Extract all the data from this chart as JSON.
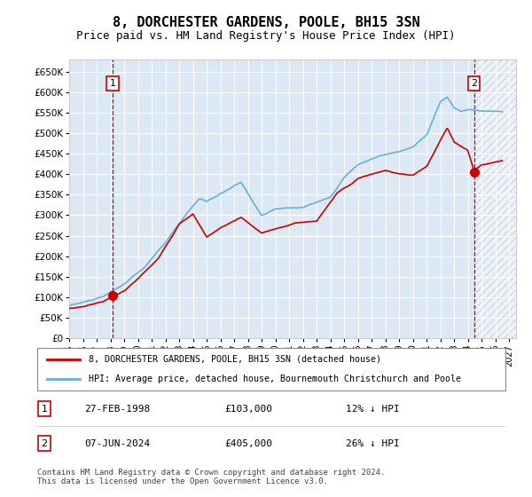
{
  "title": "8, DORCHESTER GARDENS, POOLE, BH15 3SN",
  "subtitle": "Price paid vs. HM Land Registry's House Price Index (HPI)",
  "bg_color": "#dce9f5",
  "hpi_color": "#6baed6",
  "price_color": "#cc0000",
  "marker_color": "#cc0000",
  "vline_color": "#cc0000",
  "transaction1_date_num": 1998.15,
  "transaction1_price": 103000,
  "transaction1_label": "1",
  "transaction2_date_num": 2024.44,
  "transaction2_price": 405000,
  "transaction2_label": "2",
  "transaction1_date_str": "27-FEB-1998",
  "transaction2_date_str": "07-JUN-2024",
  "t1_pct": "12% ↓ HPI",
  "t2_pct": "26% ↓ HPI",
  "legend_property": "8, DORCHESTER GARDENS, POOLE, BH15 3SN (detached house)",
  "legend_hpi": "HPI: Average price, detached house, Bournemouth Christchurch and Poole",
  "footnote": "Contains HM Land Registry data © Crown copyright and database right 2024.\nThis data is licensed under the Open Government Licence v3.0.",
  "ylim": [
    0,
    680000
  ],
  "xlim_start": 1995.0,
  "xlim_end": 2027.5,
  "hatch_start": 2024.44,
  "yticks": [
    0,
    50000,
    100000,
    150000,
    200000,
    250000,
    300000,
    350000,
    400000,
    450000,
    500000,
    550000,
    600000,
    650000
  ],
  "ytick_labels": [
    "£0",
    "£50K",
    "£100K",
    "£150K",
    "£200K",
    "£250K",
    "£300K",
    "£350K",
    "£400K",
    "£450K",
    "£500K",
    "£550K",
    "£600K",
    "£650K"
  ],
  "hpi_segments": [
    [
      1995.0,
      80000
    ],
    [
      1996.0,
      87000
    ],
    [
      1997.5,
      100000
    ],
    [
      1999.0,
      130000
    ],
    [
      2000.5,
      170000
    ],
    [
      2002.0,
      230000
    ],
    [
      2003.5,
      300000
    ],
    [
      2004.5,
      340000
    ],
    [
      2005.0,
      330000
    ],
    [
      2007.5,
      375000
    ],
    [
      2009.0,
      295000
    ],
    [
      2010.0,
      310000
    ],
    [
      2012.0,
      315000
    ],
    [
      2014.0,
      340000
    ],
    [
      2015.0,
      390000
    ],
    [
      2016.0,
      420000
    ],
    [
      2017.0,
      435000
    ],
    [
      2018.0,
      445000
    ],
    [
      2019.0,
      450000
    ],
    [
      2020.0,
      460000
    ],
    [
      2021.0,
      490000
    ],
    [
      2022.0,
      570000
    ],
    [
      2022.5,
      580000
    ],
    [
      2023.0,
      555000
    ],
    [
      2023.5,
      545000
    ],
    [
      2024.0,
      550000
    ],
    [
      2024.5,
      548000
    ],
    [
      2025.0,
      547000
    ],
    [
      2026.5,
      545000
    ]
  ],
  "prop_segments": [
    [
      1995.0,
      72000
    ],
    [
      1996.0,
      77000
    ],
    [
      1997.5,
      90000
    ],
    [
      1998.0,
      100000
    ],
    [
      1998.2,
      103000
    ],
    [
      1999.0,
      115000
    ],
    [
      2000.0,
      145000
    ],
    [
      2001.5,
      195000
    ],
    [
      2002.5,
      250000
    ],
    [
      2003.0,
      280000
    ],
    [
      2004.0,
      305000
    ],
    [
      2005.0,
      248000
    ],
    [
      2006.0,
      270000
    ],
    [
      2007.5,
      295000
    ],
    [
      2009.0,
      255000
    ],
    [
      2010.0,
      265000
    ],
    [
      2011.5,
      280000
    ],
    [
      2013.0,
      285000
    ],
    [
      2014.5,
      355000
    ],
    [
      2015.5,
      375000
    ],
    [
      2016.0,
      390000
    ],
    [
      2017.0,
      400000
    ],
    [
      2017.5,
      405000
    ],
    [
      2018.0,
      410000
    ],
    [
      2019.0,
      400000
    ],
    [
      2020.0,
      395000
    ],
    [
      2021.0,
      415000
    ],
    [
      2022.0,
      480000
    ],
    [
      2022.5,
      510000
    ],
    [
      2023.0,
      475000
    ],
    [
      2023.5,
      465000
    ],
    [
      2024.0,
      455000
    ],
    [
      2024.44,
      405000
    ],
    [
      2025.0,
      420000
    ],
    [
      2026.5,
      430000
    ]
  ]
}
